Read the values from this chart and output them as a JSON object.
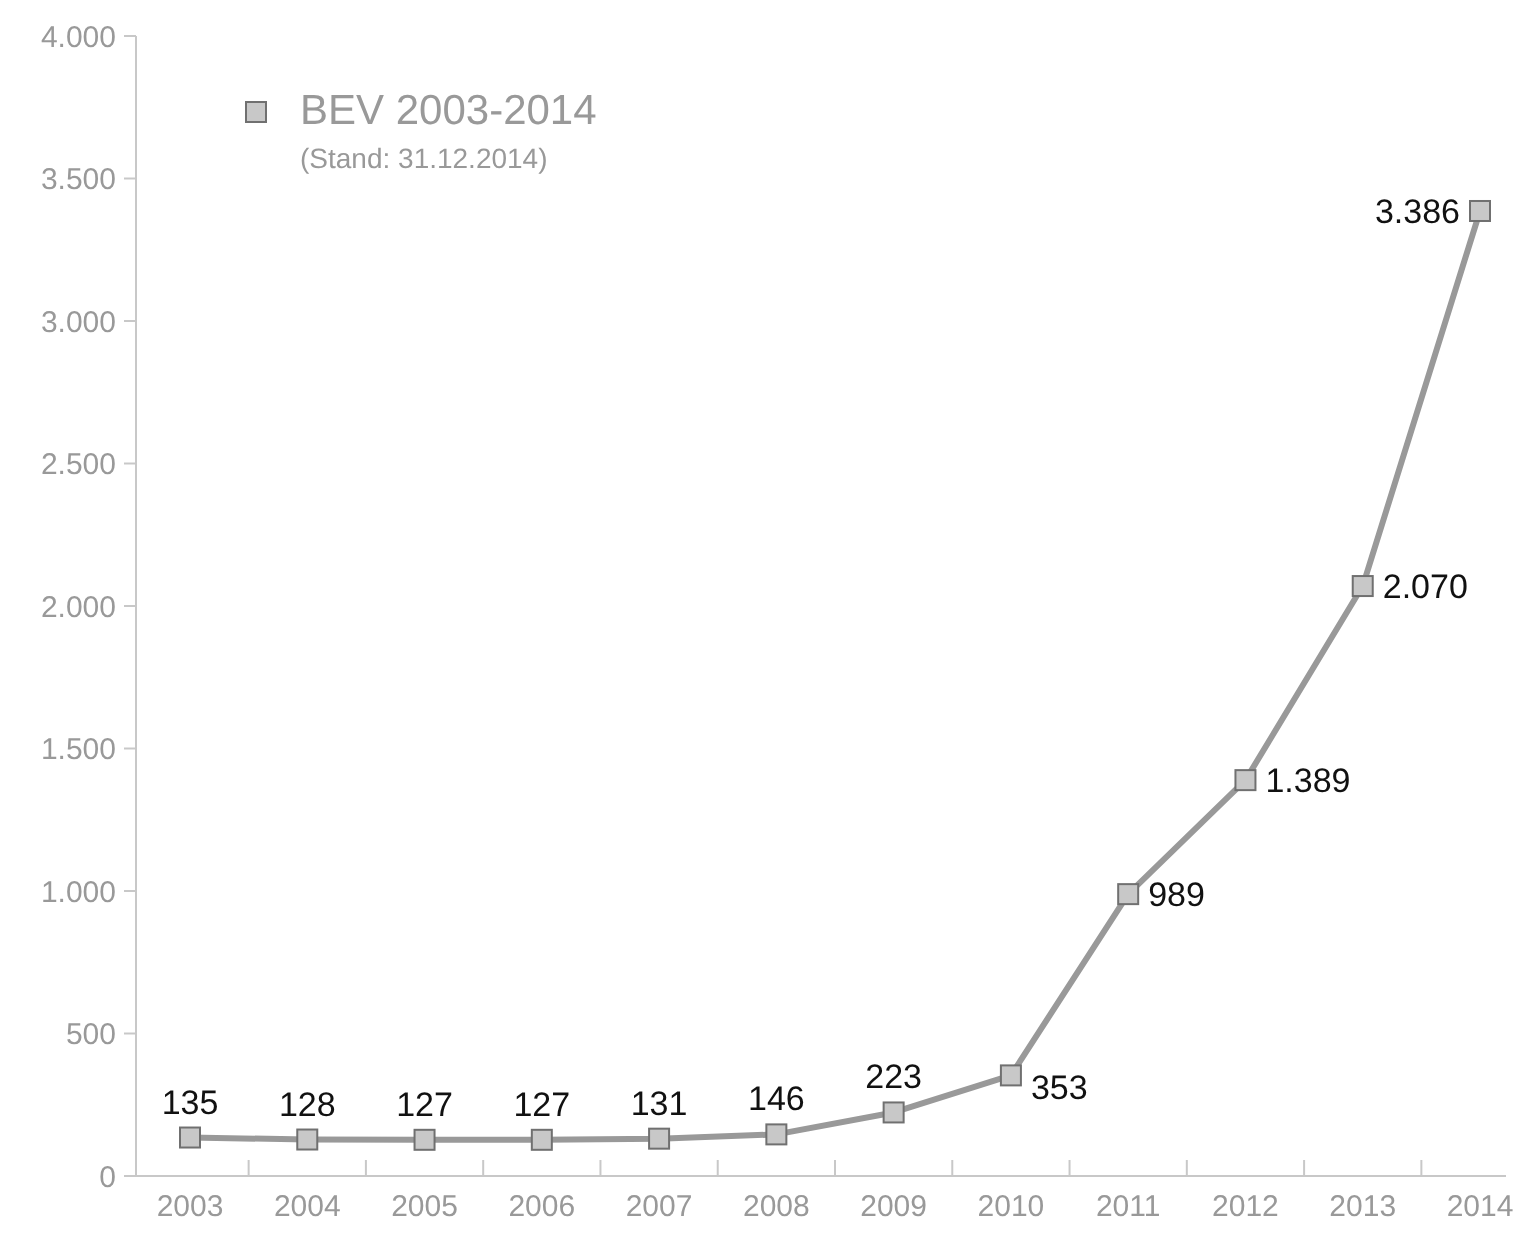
{
  "chart_data": {
    "type": "line",
    "categories": [
      "2003",
      "2004",
      "2005",
      "2006",
      "2007",
      "2008",
      "2009",
      "2010",
      "2011",
      "2012",
      "2013",
      "2014"
    ],
    "series": [
      {
        "name": "BEV 2003-2014",
        "color": "#999999",
        "values": [
          135,
          128,
          127,
          127,
          131,
          146,
          223,
          353,
          989,
          1389,
          2070,
          3386
        ],
        "value_labels": [
          "135",
          "128",
          "127",
          "127",
          "131",
          "146",
          "223",
          "353",
          "989",
          "1.389",
          "2.070",
          "3.386"
        ]
      }
    ],
    "annotations": [
      "(Stand: 31.12.2014)"
    ],
    "ylim": [
      0,
      4000
    ],
    "yticks": [
      {
        "value": 0,
        "label": "0"
      },
      {
        "value": 500,
        "label": "500"
      },
      {
        "value": 1000,
        "label": "1.000"
      },
      {
        "value": 1500,
        "label": "1.500"
      },
      {
        "value": 2000,
        "label": "2.000"
      },
      {
        "value": 2500,
        "label": "2.500"
      },
      {
        "value": 3000,
        "label": "3.000"
      },
      {
        "value": 3500,
        "label": "3.500"
      },
      {
        "value": 4000,
        "label": "4.000"
      }
    ],
    "grid": false,
    "legend": "top left",
    "marker": "square",
    "line_style": "solid"
  }
}
